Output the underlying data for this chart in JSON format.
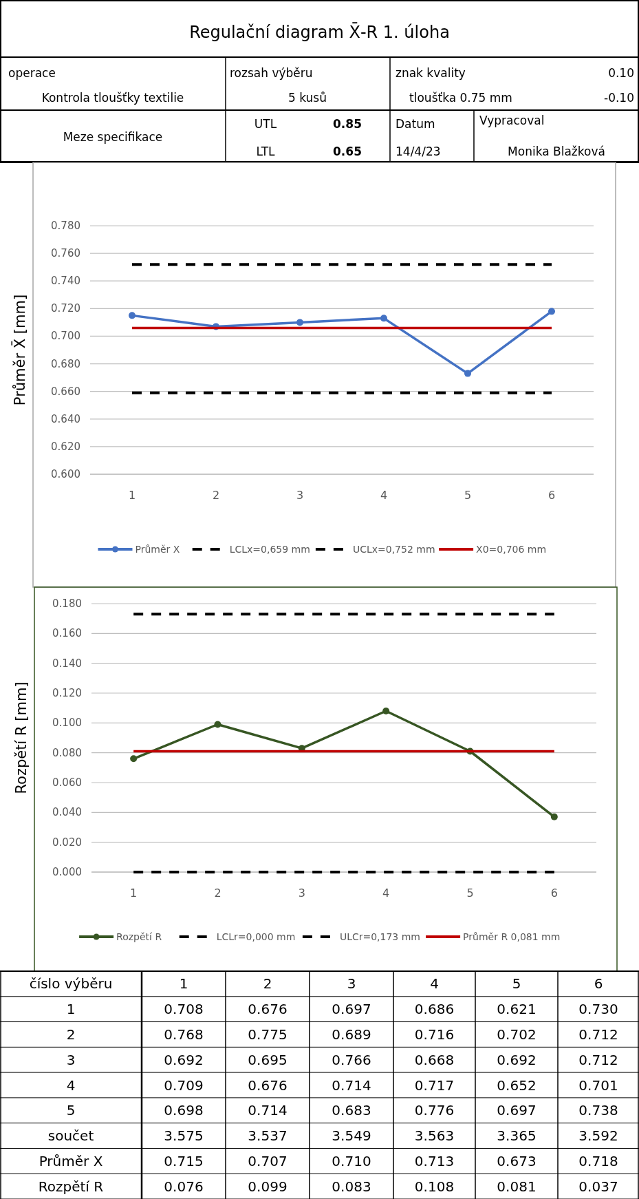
{
  "chart_data": [
    {
      "type": "other",
      "title": "Regulační diagram X̄-R 1. úloha",
      "annotations": [
        "operace",
        "rozsah výběru",
        "znak kvality",
        "0.10",
        "Kontrola tloušťky textilie",
        "5 kusů",
        "tloušťka 0.75 mm",
        "-0.10",
        "Meze specifikace",
        "UTL",
        "0.85",
        "LTL",
        "0.65",
        "Datum",
        "14/4/23",
        "Vypracoval",
        "Monika Blažková"
      ]
    },
    {
      "type": "line",
      "ylabel": "Průměr X̄ [mm]",
      "categories": [
        "1",
        "2",
        "3",
        "4",
        "5",
        "6"
      ],
      "ylim": [
        0.6,
        0.78
      ],
      "yticks": [
        {
          "value": 0.6,
          "label": "0.600"
        },
        {
          "value": 0.62,
          "label": "0.620"
        },
        {
          "value": 0.64,
          "label": "0.640"
        },
        {
          "value": 0.66,
          "label": "0.660"
        },
        {
          "value": 0.68,
          "label": "0.680"
        },
        {
          "value": 0.7,
          "label": "0.700"
        },
        {
          "value": 0.72,
          "label": "0.720"
        },
        {
          "value": 0.74,
          "label": "0.740"
        },
        {
          "value": 0.76,
          "label": "0.760"
        },
        {
          "value": 0.78,
          "label": "0.780"
        }
      ],
      "grid": "y",
      "legend": "bottom",
      "series": [
        {
          "name": "Průměr X",
          "color": "#4472c4",
          "marker": "circle",
          "line_style": "solid",
          "values": [
            0.715,
            0.707,
            0.71,
            0.713,
            0.673,
            0.718
          ]
        },
        {
          "name": "LCLx=0,659 mm",
          "color": "#000000",
          "marker": "none",
          "line_style": "dashed",
          "values": [
            0.659,
            0.659,
            0.659,
            0.659,
            0.659,
            0.659
          ]
        },
        {
          "name": "UCLx=0,752 mm",
          "color": "#000000",
          "marker": "none",
          "line_style": "dashed",
          "values": [
            0.752,
            0.752,
            0.752,
            0.752,
            0.752,
            0.752
          ]
        },
        {
          "name": "X0=0,706 mm",
          "color": "#c00000",
          "marker": "none",
          "line_style": "solid",
          "values": [
            0.706,
            0.706,
            0.706,
            0.706,
            0.706,
            0.706
          ]
        }
      ]
    },
    {
      "type": "line",
      "ylabel": "Rozpětí R [mm]",
      "categories": [
        "1",
        "2",
        "3",
        "4",
        "5",
        "6"
      ],
      "ylim": [
        0,
        0.18
      ],
      "yticks": [
        {
          "value": 0,
          "label": "0.000"
        },
        {
          "value": 0.02,
          "label": "0.020"
        },
        {
          "value": 0.04,
          "label": "0.040"
        },
        {
          "value": 0.06,
          "label": "0.060"
        },
        {
          "value": 0.08,
          "label": "0.080"
        },
        {
          "value": 0.1,
          "label": "0.100"
        },
        {
          "value": 0.12,
          "label": "0.120"
        },
        {
          "value": 0.14,
          "label": "0.140"
        },
        {
          "value": 0.16,
          "label": "0.160"
        },
        {
          "value": 0.18,
          "label": "0.180"
        }
      ],
      "grid": "y",
      "legend": "bottom",
      "series": [
        {
          "name": "Rozpětí R",
          "color": "#375623",
          "marker": "circle",
          "line_style": "solid",
          "values": [
            0.076,
            0.099,
            0.083,
            0.108,
            0.081,
            0.037
          ]
        },
        {
          "name": "LCLr=0,000 mm",
          "color": "#000000",
          "marker": "none",
          "line_style": "dashed",
          "values": [
            0,
            0,
            0,
            0,
            0,
            0
          ]
        },
        {
          "name": "ULCr=0,173 mm",
          "color": "#000000",
          "marker": "none",
          "line_style": "dashed",
          "values": [
            0.173,
            0.173,
            0.173,
            0.173,
            0.173,
            0.173
          ]
        },
        {
          "name": "Průměr R 0,081 mm",
          "color": "#c00000",
          "marker": "none",
          "line_style": "solid",
          "values": [
            0.081,
            0.081,
            0.081,
            0.081,
            0.081,
            0.081
          ]
        }
      ]
    },
    {
      "type": "heatmap",
      "legend_title": "číslo výběru",
      "categories": [
        "1",
        "2",
        "3",
        "4",
        "5",
        "6"
      ],
      "y_categories": [
        "1",
        "2",
        "3",
        "4",
        "5",
        "součet",
        "Průměr X",
        "Rozpětí R"
      ],
      "data_labels": true,
      "cells": [
        [
          0.708,
          0.676,
          0.697,
          0.686,
          0.621,
          0.73
        ],
        [
          0.768,
          0.775,
          0.689,
          0.716,
          0.702,
          0.712
        ],
        [
          0.692,
          0.695,
          0.766,
          0.668,
          0.692,
          0.712
        ],
        [
          0.709,
          0.676,
          0.714,
          0.717,
          0.652,
          0.701
        ],
        [
          0.698,
          0.714,
          0.683,
          0.776,
          0.697,
          0.738
        ],
        [
          3.575,
          3.537,
          3.549,
          3.563,
          3.365,
          3.592
        ],
        [
          0.715,
          0.707,
          0.71,
          0.713,
          0.673,
          0.718
        ],
        [
          0.076,
          0.099,
          0.083,
          0.108,
          0.081,
          0.037
        ]
      ],
      "cell_labels": [
        [
          "0.708",
          "0.676",
          "0.697",
          "0.686",
          "0.621",
          "0.730"
        ],
        [
          "0.768",
          "0.775",
          "0.689",
          "0.716",
          "0.702",
          "0.712"
        ],
        [
          "0.692",
          "0.695",
          "0.766",
          "0.668",
          "0.692",
          "0.712"
        ],
        [
          "0.709",
          "0.676",
          "0.714",
          "0.717",
          "0.652",
          "0.701"
        ],
        [
          "0.698",
          "0.714",
          "0.683",
          "0.776",
          "0.697",
          "0.738"
        ],
        [
          "3.575",
          "3.537",
          "3.549",
          "3.563",
          "3.365",
          "3.592"
        ],
        [
          "0.715",
          "0.707",
          "0.710",
          "0.713",
          "0.673",
          "0.718"
        ],
        [
          "0.076",
          "0.099",
          "0.083",
          "0.108",
          "0.081",
          "0.037"
        ]
      ]
    }
  ]
}
